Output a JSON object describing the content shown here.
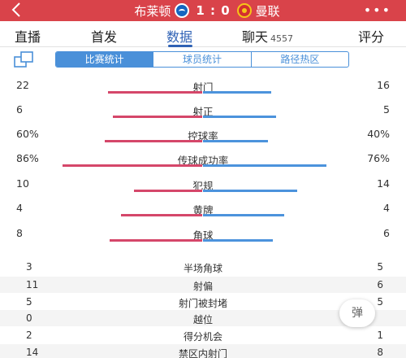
{
  "header": {
    "home_team": "布莱顿",
    "score": "1 : 0",
    "away_team": "曼联",
    "more": "•••"
  },
  "tabs": [
    {
      "label": "直播",
      "count": ""
    },
    {
      "label": "首发",
      "count": ""
    },
    {
      "label": "数据",
      "count": ""
    },
    {
      "label": "聊天",
      "count": "4557"
    },
    {
      "label": "评分",
      "count": ""
    }
  ],
  "active_tab": "数据",
  "subtabs": [
    "比赛统计",
    "球员统计",
    "路径热区"
  ],
  "active_subtab": "比赛统计",
  "colors": {
    "header": "#d9434a",
    "home_bar": "#d5476a",
    "away_bar": "#4c93dc",
    "accent": "#2f62b5"
  },
  "bar_stats": [
    {
      "name": "射门",
      "home": "22",
      "away": "16",
      "home_ratio": 0.58,
      "away_ratio": 0.42
    },
    {
      "name": "射正",
      "home": "6",
      "away": "5",
      "home_ratio": 0.55,
      "away_ratio": 0.45
    },
    {
      "name": "控球率",
      "home": "60%",
      "away": "40%",
      "home_ratio": 0.6,
      "away_ratio": 0.4
    },
    {
      "name": "传球成功率",
      "home": "86%",
      "away": "76%",
      "home_ratio": 0.86,
      "away_ratio": 0.76
    },
    {
      "name": "犯规",
      "home": "10",
      "away": "14",
      "home_ratio": 0.42,
      "away_ratio": 0.58
    },
    {
      "name": "黄牌",
      "home": "4",
      "away": "4",
      "home_ratio": 0.5,
      "away_ratio": 0.5
    },
    {
      "name": "角球",
      "home": "8",
      "away": "6",
      "home_ratio": 0.57,
      "away_ratio": 0.43
    }
  ],
  "table_stats": [
    {
      "name": "半场角球",
      "home": "3",
      "away": "5"
    },
    {
      "name": "射偏",
      "home": "11",
      "away": "6"
    },
    {
      "name": "射门被封堵",
      "home": "5",
      "away": "5"
    },
    {
      "name": "越位",
      "home": "0",
      "away": ""
    },
    {
      "name": "得分机会",
      "home": "2",
      "away": "1"
    },
    {
      "name": "禁区内射门",
      "home": "14",
      "away": "8"
    }
  ],
  "float_button": "弹"
}
